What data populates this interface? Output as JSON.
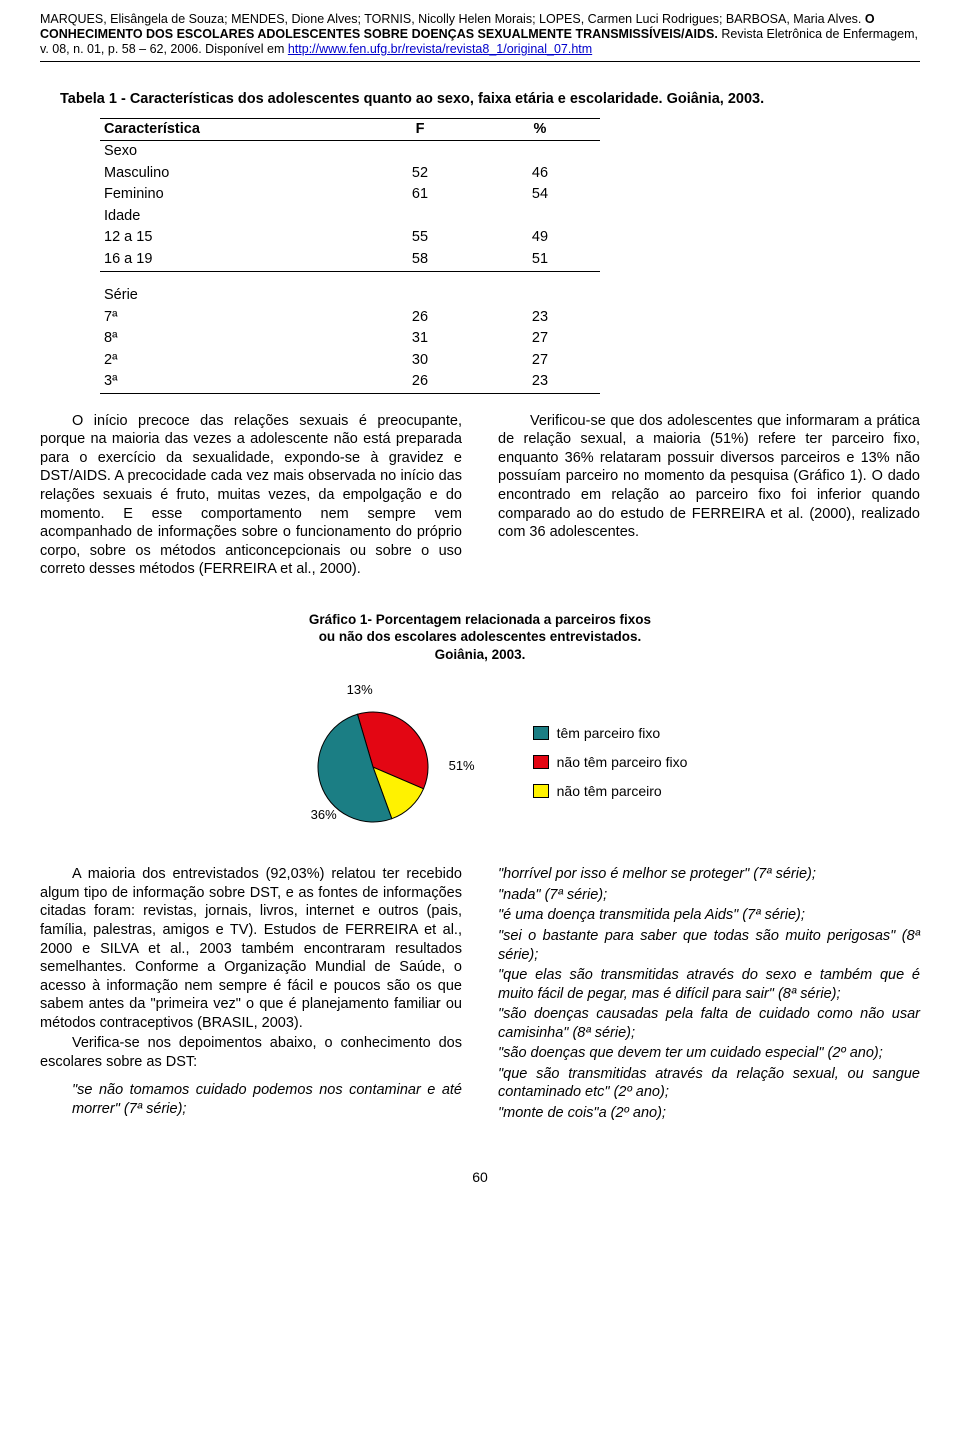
{
  "header": {
    "authors": "MARQUES, Elisângela de Souza; MENDES, Dione Alves; TORNIS, Nicolly Helen Morais; LOPES, Carmen Luci Rodrigues; BARBOSA, Maria Alves.",
    "title_bold": " O CONHECIMENTO DOS ESCOLARES ADOLESCENTES SOBRE DOENÇAS SEXUALMENTE TRANSMISSÍVEIS/AIDS.",
    "journal": " Revista Eletrônica de Enfermagem, v. 08, n. 01, p. 58 – 62, 2006. Disponível em ",
    "url": "http://www.fen.ufg.br/revista/revista8_1/original_07.htm"
  },
  "table": {
    "caption": "Tabela 1 - Características dos adolescentes quanto ao sexo, faixa etária e escolaridade. Goiânia, 2003.",
    "head": {
      "c1": "Característica",
      "c2": "F",
      "c3": "%"
    },
    "group1_label": "Sexo",
    "group1": [
      {
        "label": "Masculino",
        "f": "52",
        "p": "46"
      },
      {
        "label": "Feminino",
        "f": "61",
        "p": "54"
      }
    ],
    "group2_label": "Idade",
    "group2": [
      {
        "label": "12 a 15",
        "f": "55",
        "p": "49"
      },
      {
        "label": "16 a 19",
        "f": "58",
        "p": "51"
      }
    ],
    "group3_label": "Série",
    "group3": [
      {
        "label": "7ª",
        "f": "26",
        "p": "23"
      },
      {
        "label": "8ª",
        "f": "31",
        "p": "27"
      },
      {
        "label": "2ª",
        "f": "30",
        "p": "27"
      },
      {
        "label": "3ª",
        "f": "26",
        "p": "23"
      }
    ]
  },
  "body1_left": "O início precoce das relações sexuais é preocupante, porque na maioria das vezes a adolescente não está preparada para o exercício da sexualidade, expondo-se à gravidez e DST/AIDS. A precocidade cada vez mais observada no início das relações sexuais é fruto, muitas vezes, da empolgação e do momento. E esse comportamento nem sempre vem acompanhado de informações sobre o funcionamento do próprio corpo, sobre os métodos anticoncepcionais ou sobre o uso correto desses métodos (FERREIRA et al., 2000).",
  "body1_right": "Verificou-se que dos adolescentes que informaram a prática de relação sexual, a maioria (51%) refere ter parceiro fixo, enquanto 36% relataram possuir diversos parceiros e 13% não possuíam parceiro no momento da pesquisa (Gráfico 1). O dado encontrado em relação ao parceiro fixo foi inferior quando comparado ao do estudo de FERREIRA et al. (2000), realizado com 36 adolescentes.",
  "chart": {
    "type": "pie",
    "title": "Gráfico 1- Porcentagem relacionada a parceiros fixos\nou não dos escolares adolescentes entrevistados.\nGoiânia, 2003.",
    "slices": [
      {
        "label": "têm parceiro fixo",
        "value": 51,
        "color": "#1b7e84",
        "pct_label": "51%"
      },
      {
        "label": "não têm parceiro fixo",
        "value": 36,
        "color": "#e30613",
        "pct_label": "36%"
      },
      {
        "label": "não têm parceiro",
        "value": 13,
        "color": "#fff200",
        "pct_label": "13%"
      }
    ],
    "stroke": "#000000",
    "background": "#ffffff"
  },
  "body2_left_p1": "A maioria dos entrevistados (92,03%) relatou ter recebido algum tipo de informação sobre DST, e as fontes de informações citadas foram: revistas, jornais, livros, internet e outros (pais, família, palestras, amigos e TV). Estudos de FERREIRA et al., 2000 e SILVA et al., 2003 também encontraram resultados semelhantes. Conforme a Organização Mundial de Saúde, o acesso à informação nem sempre é fácil e poucos são os que sabem antes da \"primeira vez\" o que é planejamento familiar ou métodos contraceptivos (BRASIL, 2003).",
  "body2_left_p2": "Verifica-se nos depoimentos abaixo, o conhecimento dos escolares sobre as DST:",
  "quote_left": "\"se não tomamos cuidado podemos nos contaminar e até morrer\" (7ª série);",
  "quotes_right": [
    "\"horrível por isso é melhor se proteger\" (7ª série);",
    "\"nada\" (7ª série);",
    "\"é uma doença transmitida pela Aids\" (7ª série);",
    "\"sei o bastante para saber que todas são muito perigosas\" (8ª série);",
    "\"que elas são transmitidas através do sexo e também que é muito fácil de pegar, mas é difícil para sair\" (8ª série);",
    "\"são doenças causadas pela falta de cuidado como não usar camisinha\" (8ª série);",
    "\"são doenças que devem ter um cuidado especial\" (2º ano);",
    "\"que são transmitidas através da relação sexual, ou sangue contaminado etc\" (2º ano);",
    "\"monte de cois\"a (2º ano);"
  ],
  "page_num": "60"
}
